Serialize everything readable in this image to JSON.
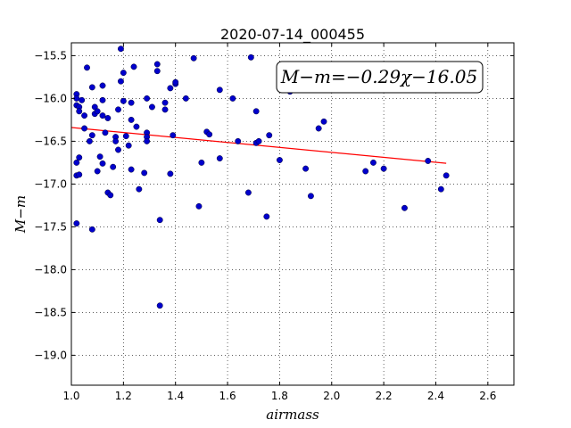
{
  "chart_data": {
    "type": "scatter",
    "title": "2020-07-14_000455",
    "xlabel": "airmass",
    "ylabel": "M−m",
    "xlim": [
      1.0,
      2.7
    ],
    "ylim": [
      -19.35,
      -15.35
    ],
    "y_inverted": true,
    "x_ticks": [
      1.0,
      1.2,
      1.4,
      1.6,
      1.8,
      2.0,
      2.2,
      2.4,
      2.6
    ],
    "x_tick_labels": [
      "1.0",
      "1.2",
      "1.4",
      "1.6",
      "1.8",
      "2.0",
      "2.2",
      "2.4",
      "2.6"
    ],
    "y_ticks": [
      -15.5,
      -16.0,
      -16.5,
      -17.0,
      -17.5,
      -18.0,
      -18.5,
      -19.0
    ],
    "y_tick_labels": [
      "−15.5",
      "−16.0",
      "−16.5",
      "−17.0",
      "−17.5",
      "−18.0",
      "−18.5",
      "−19.0"
    ],
    "grid": true,
    "annotation": "M−m=−0.29χ−16.05",
    "fit": {
      "slope": -0.29,
      "intercept": -16.05,
      "x_range": [
        1.0,
        2.44
      ],
      "color": "#ff0000"
    },
    "point_color": "#0000cc",
    "points": [
      [
        1.02,
        -15.95
      ],
      [
        1.02,
        -16.0
      ],
      [
        1.02,
        -16.08
      ],
      [
        1.03,
        -16.1
      ],
      [
        1.03,
        -16.15
      ],
      [
        1.04,
        -16.02
      ],
      [
        1.05,
        -16.2
      ],
      [
        1.06,
        -15.64
      ],
      [
        1.05,
        -16.35
      ],
      [
        1.07,
        -16.5
      ],
      [
        1.08,
        -16.43
      ],
      [
        1.08,
        -15.87
      ],
      [
        1.09,
        -16.1
      ],
      [
        1.09,
        -16.18
      ],
      [
        1.1,
        -16.15
      ],
      [
        1.1,
        -16.85
      ],
      [
        1.12,
        -15.85
      ],
      [
        1.12,
        -16.02
      ],
      [
        1.12,
        -16.2
      ],
      [
        1.13,
        -16.4
      ],
      [
        1.14,
        -16.23
      ],
      [
        1.14,
        -17.1
      ],
      [
        1.15,
        -17.13
      ],
      [
        1.11,
        -16.68
      ],
      [
        1.12,
        -16.76
      ],
      [
        1.16,
        -16.8
      ],
      [
        1.17,
        -16.45
      ],
      [
        1.17,
        -16.5
      ],
      [
        1.18,
        -16.6
      ],
      [
        1.18,
        -16.13
      ],
      [
        1.19,
        -15.42
      ],
      [
        1.19,
        -15.8
      ],
      [
        1.2,
        -16.03
      ],
      [
        1.2,
        -15.7
      ],
      [
        1.21,
        -16.44
      ],
      [
        1.22,
        -16.55
      ],
      [
        1.23,
        -16.25
      ],
      [
        1.23,
        -16.83
      ],
      [
        1.23,
        -16.05
      ],
      [
        1.24,
        -15.63
      ],
      [
        1.25,
        -16.33
      ],
      [
        1.26,
        -17.06
      ],
      [
        1.28,
        -16.87
      ],
      [
        1.29,
        -16.0
      ],
      [
        1.29,
        -16.4
      ],
      [
        1.29,
        -16.45
      ],
      [
        1.29,
        -16.5
      ],
      [
        1.31,
        -16.1
      ],
      [
        1.33,
        -15.68
      ],
      [
        1.33,
        -15.6
      ],
      [
        1.34,
        -17.42
      ],
      [
        1.34,
        -18.42
      ],
      [
        1.36,
        -16.05
      ],
      [
        1.36,
        -16.13
      ],
      [
        1.38,
        -15.88
      ],
      [
        1.38,
        -16.88
      ],
      [
        1.39,
        -16.43
      ],
      [
        1.4,
        -15.83
      ],
      [
        1.4,
        -15.81
      ],
      [
        1.44,
        -16.0
      ],
      [
        1.47,
        -15.53
      ],
      [
        1.49,
        -17.26
      ],
      [
        1.5,
        -16.75
      ],
      [
        1.52,
        -16.39
      ],
      [
        1.53,
        -16.42
      ],
      [
        1.57,
        -15.9
      ],
      [
        1.57,
        -16.7
      ],
      [
        1.62,
        -16.0
      ],
      [
        1.64,
        -16.5
      ],
      [
        1.68,
        -17.1
      ],
      [
        1.69,
        -15.52
      ],
      [
        1.71,
        -16.15
      ],
      [
        1.71,
        -16.52
      ],
      [
        1.72,
        -16.5
      ],
      [
        1.75,
        -17.38
      ],
      [
        1.76,
        -16.43
      ],
      [
        1.8,
        -16.72
      ],
      [
        1.84,
        -15.92
      ],
      [
        1.9,
        -16.82
      ],
      [
        1.92,
        -17.14
      ],
      [
        1.95,
        -16.35
      ],
      [
        1.97,
        -16.27
      ],
      [
        2.13,
        -16.85
      ],
      [
        2.16,
        -16.75
      ],
      [
        2.2,
        -16.82
      ],
      [
        2.28,
        -17.28
      ],
      [
        2.37,
        -16.73
      ],
      [
        2.42,
        -17.06
      ],
      [
        2.44,
        -16.9
      ],
      [
        1.02,
        -16.9
      ],
      [
        1.03,
        -16.89
      ],
      [
        1.02,
        -16.75
      ],
      [
        1.03,
        -16.69
      ],
      [
        1.02,
        -17.46
      ],
      [
        1.08,
        -17.53
      ]
    ]
  }
}
